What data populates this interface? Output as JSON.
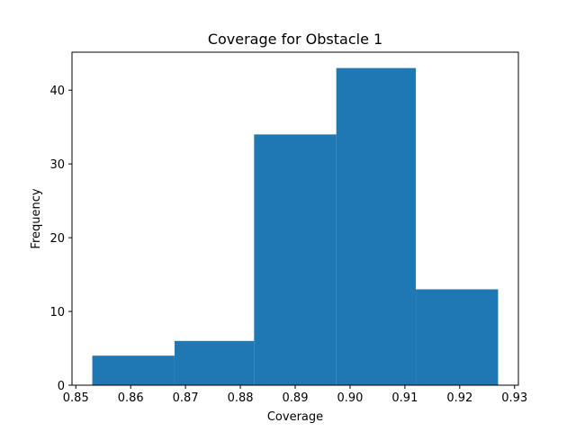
{
  "chart_data": {
    "type": "bar",
    "title": "Coverage for Obstacle 1",
    "xlabel": "Coverage",
    "ylabel": "Frequency",
    "bins": [
      {
        "x0": 0.853,
        "x1": 0.868,
        "count": 4
      },
      {
        "x0": 0.868,
        "x1": 0.8825,
        "count": 6
      },
      {
        "x0": 0.8825,
        "x1": 0.8975,
        "count": 34
      },
      {
        "x0": 0.8975,
        "x1": 0.912,
        "count": 43
      },
      {
        "x0": 0.912,
        "x1": 0.927,
        "count": 13
      }
    ],
    "xlim": [
      0.8493,
      0.9307
    ],
    "ylim": [
      0,
      45.15
    ],
    "xticks": [
      0.85,
      0.86,
      0.87,
      0.88,
      0.89,
      0.9,
      0.91,
      0.92,
      0.93
    ],
    "xtick_labels": [
      "0.85",
      "0.86",
      "0.87",
      "0.88",
      "0.89",
      "0.90",
      "0.91",
      "0.92",
      "0.93"
    ],
    "yticks": [
      0,
      10,
      20,
      30,
      40
    ],
    "ytick_labels": [
      "0",
      "10",
      "20",
      "30",
      "40"
    ],
    "bar_color": "#1f77b4",
    "grid": false,
    "legend": "none"
  }
}
